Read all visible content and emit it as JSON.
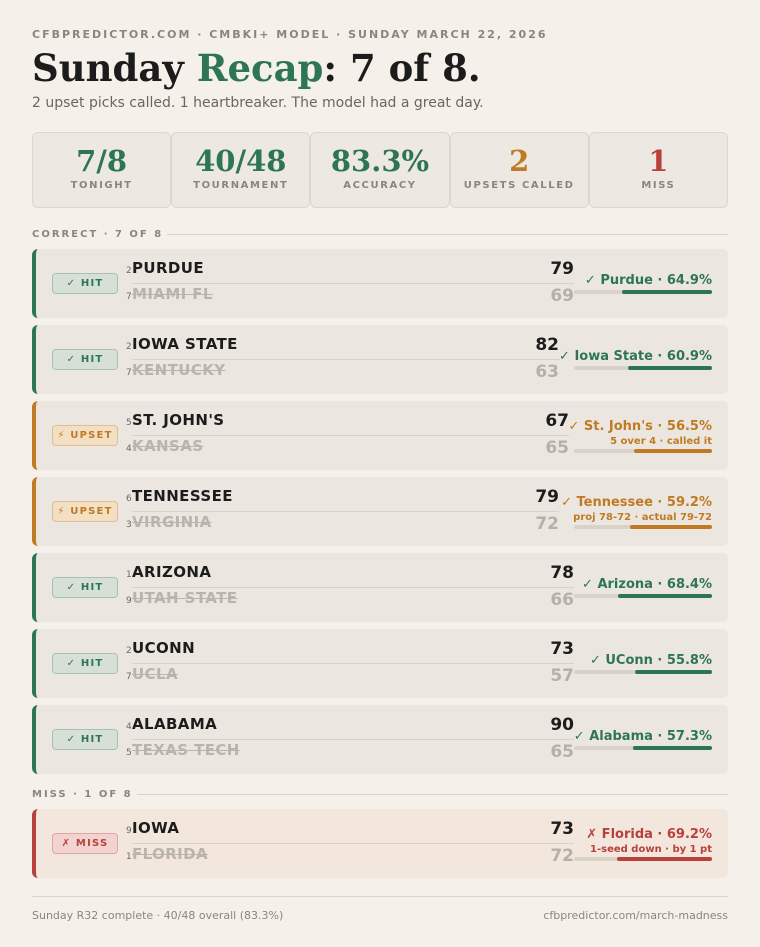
{
  "header": {
    "eyebrow": "CFBPREDICTOR.COM · CMBKI+ MODEL · SUNDAY MARCH 22, 2026",
    "title_pre": "Sunday ",
    "title_accent": "Recap",
    "title_post": ": 7 of 8.",
    "subtitle": "2 upset picks called. 1 heartbreaker. The model had a great day."
  },
  "stats": [
    {
      "value": "7/8",
      "label": "TONIGHT"
    },
    {
      "value": "40/48",
      "label": "TOURNAMENT"
    },
    {
      "value": "83.3%",
      "label": "ACCURACY"
    },
    {
      "value": "2",
      "label": "UPSETS CALLED"
    },
    {
      "value": "1",
      "label": "MISS"
    }
  ],
  "sections": {
    "correct": "CORRECT · 7 OF 8",
    "miss": "MISS · 1 OF 8"
  },
  "games": [
    {
      "badge": "✓ HIT",
      "winner_seed": "2",
      "winner": "PURDUE",
      "winner_score": "79",
      "loser_seed": "7",
      "loser": "MIAMI FL",
      "loser_score": "69",
      "pick": "✓ Purdue · 64.9%",
      "note": "",
      "confidence": 64.9
    },
    {
      "badge": "✓ HIT",
      "winner_seed": "2",
      "winner": "IOWA STATE",
      "winner_score": "82",
      "loser_seed": "7",
      "loser": "KENTUCKY",
      "loser_score": "63",
      "pick": "✓ Iowa State · 60.9%",
      "note": "",
      "confidence": 60.9
    },
    {
      "badge": "⚡ UPSET",
      "winner_seed": "5",
      "winner": "ST. JOHN'S",
      "winner_score": "67",
      "loser_seed": "4",
      "loser": "KANSAS",
      "loser_score": "65",
      "pick": "✓ St. John's · 56.5%",
      "note": "5 over 4 · called it",
      "confidence": 56.5
    },
    {
      "badge": "⚡ UPSET",
      "winner_seed": "6",
      "winner": "TENNESSEE",
      "winner_score": "79",
      "loser_seed": "3",
      "loser": "VIRGINIA",
      "loser_score": "72",
      "pick": "✓ Tennessee · 59.2%",
      "note": "proj 78-72 · actual 79-72",
      "confidence": 59.2
    },
    {
      "badge": "✓ HIT",
      "winner_seed": "1",
      "winner": "ARIZONA",
      "winner_score": "78",
      "loser_seed": "9",
      "loser": "UTAH STATE",
      "loser_score": "66",
      "pick": "✓ Arizona · 68.4%",
      "note": "",
      "confidence": 68.4
    },
    {
      "badge": "✓ HIT",
      "winner_seed": "2",
      "winner": "UCONN",
      "winner_score": "73",
      "loser_seed": "7",
      "loser": "UCLA",
      "loser_score": "57",
      "pick": "✓ UConn · 55.8%",
      "note": "",
      "confidence": 55.8
    },
    {
      "badge": "✓ HIT",
      "winner_seed": "4",
      "winner": "ALABAMA",
      "winner_score": "90",
      "loser_seed": "5",
      "loser": "TEXAS TECH",
      "loser_score": "65",
      "pick": "✓ Alabama · 57.3%",
      "note": "",
      "confidence": 57.3
    },
    {
      "badge": "✗ MISS",
      "winner_seed": "9",
      "winner": "IOWA",
      "winner_score": "73",
      "loser_seed": "1",
      "loser": "FLORIDA",
      "loser_score": "72",
      "pick": "✗ Florida · 69.2%",
      "note": "1-seed down · by 1 pt",
      "confidence": 69.2
    }
  ],
  "footer": {
    "left": "Sunday R32 complete · 40/48 overall (83.3%)",
    "right": "cfbpredictor.com/march-madness"
  },
  "colors": {
    "hit": "#2e7556",
    "upset": "#c07a24",
    "miss": "#b7413b",
    "background": "#f5f1ea"
  }
}
